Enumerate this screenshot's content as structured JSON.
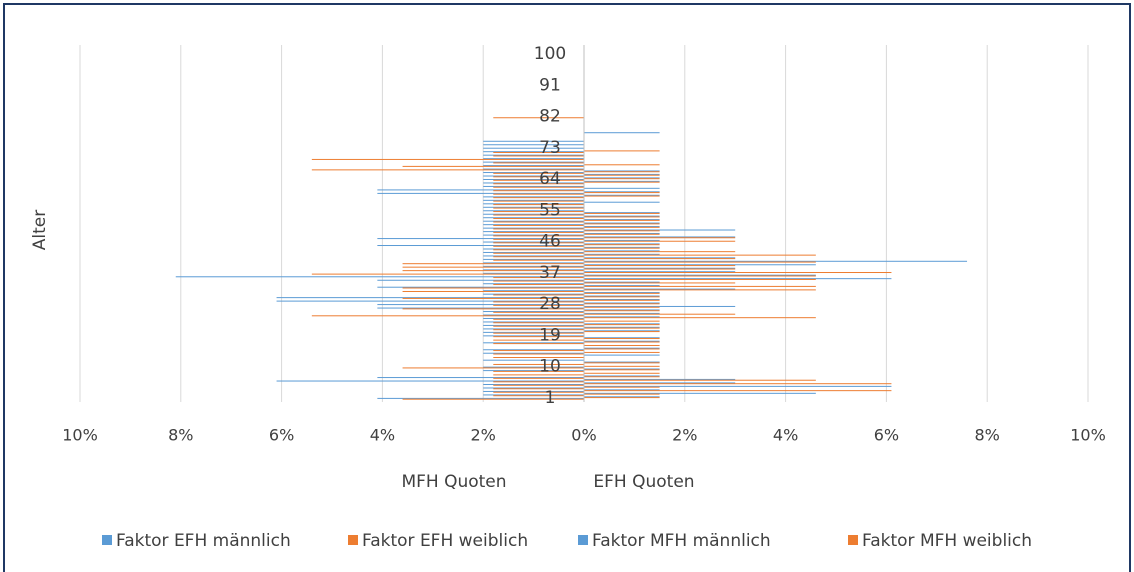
{
  "chart_data": {
    "type": "bar",
    "orientation": "horizontal",
    "categories": [
      1,
      null,
      null,
      null,
      null,
      null,
      null,
      null,
      null,
      10,
      null,
      null,
      null,
      null,
      null,
      null,
      null,
      null,
      19,
      null,
      null,
      null,
      null,
      null,
      null,
      null,
      null,
      28,
      null,
      null,
      null,
      null,
      null,
      null,
      null,
      null,
      37,
      null,
      null,
      null,
      null,
      null,
      null,
      null,
      null,
      46,
      null,
      null,
      null,
      null,
      null,
      null,
      null,
      null,
      55,
      null,
      null,
      null,
      null,
      null,
      null,
      null,
      null,
      64,
      null,
      null,
      null,
      null,
      null,
      null,
      null,
      null,
      73,
      null,
      null,
      null,
      null,
      null,
      null,
      null,
      null,
      82,
      null,
      null,
      null,
      null,
      null,
      null,
      null,
      null,
      91,
      null,
      null,
      null,
      null,
      null,
      null,
      null,
      null,
      100
    ],
    "series": [
      {
        "name": "Faktor EFH männlich",
        "color": "#5b9bd5",
        "values": [
          1.5,
          4.6,
          1.5,
          6.1,
          3.0,
          3.0,
          1.5,
          0,
          1.5,
          0,
          1.5,
          0,
          1.5,
          0,
          1.5,
          0,
          1.5,
          1.5,
          0,
          1.5,
          1.5,
          1.5,
          0,
          1.5,
          1.5,
          1.5,
          3.0,
          1.5,
          1.5,
          1.5,
          1.5,
          3.0,
          1.5,
          1.5,
          6.1,
          4.6,
          3.0,
          3.0,
          4.6,
          7.6,
          3.0,
          1.5,
          1.5,
          1.5,
          1.5,
          1.5,
          3.0,
          1.5,
          3.0,
          1.5,
          1.5,
          1.5,
          1.5,
          1.5,
          0,
          0,
          1.5,
          0,
          1.5,
          1.5,
          1.5,
          0,
          1.5,
          1.5,
          1.5,
          1.5,
          0,
          0,
          0,
          0,
          0,
          0,
          0,
          0,
          0,
          0,
          1.5,
          0,
          0,
          0,
          0,
          0,
          0,
          0,
          0,
          0,
          0,
          0,
          0,
          0,
          0,
          0,
          0,
          0,
          0,
          0,
          0,
          0,
          0,
          0
        ]
      },
      {
        "name": "Faktor EFH weiblich",
        "color": "#ed7d31",
        "values": [
          1.5,
          1.5,
          6.1,
          1.5,
          6.1,
          4.6,
          1.5,
          1.5,
          1.5,
          1.5,
          1.5,
          0,
          0,
          1.5,
          1.5,
          1.5,
          1.5,
          1.5,
          0,
          1.5,
          1.5,
          1.5,
          1.5,
          4.6,
          3.0,
          1.5,
          1.5,
          1.5,
          1.5,
          1.5,
          1.5,
          4.6,
          4.6,
          3.0,
          4.6,
          4.6,
          6.1,
          3.0,
          3.0,
          4.6,
          3.0,
          4.6,
          3.0,
          1.5,
          1.5,
          3.0,
          3.0,
          1.5,
          1.5,
          1.5,
          1.5,
          1.5,
          1.5,
          1.5,
          0,
          0,
          0,
          0,
          1.5,
          1.5,
          0,
          0,
          1.5,
          1.5,
          1.5,
          1.5,
          0,
          1.5,
          0,
          0,
          0,
          1.5,
          0,
          0,
          0,
          0,
          0,
          0,
          0,
          0,
          0,
          0,
          0,
          0,
          0,
          0,
          0,
          0,
          0,
          0,
          0,
          0,
          0,
          0,
          0,
          0,
          0,
          0,
          0,
          0
        ]
      },
      {
        "name": "Faktor MFH männlich",
        "color": "#5b9bd5",
        "values": [
          -4.1,
          -2.0,
          -2.0,
          -2.0,
          -2.0,
          -6.1,
          -4.1,
          0,
          -2.0,
          -2.0,
          0,
          -2.0,
          0,
          -2.0,
          -2.0,
          0,
          -2.0,
          0,
          -2.0,
          -2.0,
          -2.0,
          -2.0,
          -2.0,
          -2.0,
          -2.0,
          -2.0,
          -4.1,
          -4.1,
          -6.1,
          -6.1,
          -2.0,
          -2.0,
          -4.1,
          -2.0,
          -4.1,
          -8.1,
          -2.0,
          -2.0,
          -2.0,
          -2.0,
          -2.0,
          -2.0,
          -2.0,
          -2.0,
          -4.1,
          -2.0,
          -4.1,
          -2.0,
          -2.0,
          -2.0,
          -2.0,
          -2.0,
          -2.0,
          -2.0,
          -2.0,
          -2.0,
          -2.0,
          -2.0,
          -2.0,
          -4.1,
          -4.1,
          -2.0,
          -2.0,
          -2.0,
          -2.0,
          -2.0,
          -2.0,
          -2.0,
          -2.0,
          -2.0,
          -2.0,
          -2.0,
          -2.0,
          -2.0,
          -2.0,
          0,
          0,
          0,
          0,
          0,
          0,
          0,
          0,
          0,
          0,
          0,
          0,
          0,
          0,
          0,
          0,
          0,
          0,
          0,
          0,
          0,
          0,
          0,
          0,
          0
        ]
      },
      {
        "name": "Faktor MFH weiblich",
        "color": "#ed7d31",
        "values": [
          -3.6,
          -1.8,
          -1.8,
          -1.8,
          -1.8,
          -1.8,
          -1.8,
          -1.8,
          -1.8,
          -3.6,
          -1.8,
          0,
          -1.8,
          -1.8,
          -1.8,
          0,
          -1.8,
          -1.8,
          -1.8,
          -1.8,
          -1.8,
          -1.8,
          -1.8,
          -1.8,
          -5.4,
          -1.8,
          -3.6,
          -1.8,
          -1.8,
          -3.6,
          -1.8,
          -3.6,
          -3.6,
          -1.8,
          -1.8,
          -1.8,
          -5.4,
          -3.6,
          -3.6,
          -3.6,
          -1.8,
          -1.8,
          -1.8,
          -1.8,
          -1.8,
          -1.8,
          -1.8,
          -1.8,
          -1.8,
          -1.8,
          -1.8,
          -1.8,
          -1.8,
          -1.8,
          -1.8,
          -1.8,
          -1.8,
          -1.8,
          -1.8,
          -1.8,
          -1.8,
          -1.8,
          -1.8,
          -1.8,
          -1.8,
          -1.8,
          -5.4,
          -3.6,
          -1.8,
          -5.4,
          -1.8,
          -1.8,
          0,
          0,
          0,
          0,
          0,
          0,
          0,
          0,
          0,
          -1.8,
          0,
          0,
          0,
          0,
          0,
          0,
          0,
          0,
          0,
          0,
          0,
          0,
          0,
          0,
          0,
          0,
          0,
          0
        ]
      }
    ],
    "xlim": [
      -10,
      10
    ],
    "xticks": [
      {
        "value": -10,
        "label": "10%"
      },
      {
        "value": -8,
        "label": "8%"
      },
      {
        "value": -6,
        "label": "6%"
      },
      {
        "value": -4,
        "label": "4%"
      },
      {
        "value": -2,
        "label": "2%"
      },
      {
        "value": 0,
        "label": "0%"
      },
      {
        "value": 2,
        "label": "2%"
      },
      {
        "value": 4,
        "label": "4%"
      },
      {
        "value": 6,
        "label": "6%"
      },
      {
        "value": 8,
        "label": "8%"
      },
      {
        "value": 10,
        "label": "10%"
      }
    ],
    "ylabel": "Alter",
    "xlabel_left": "MFH Quoten",
    "xlabel_right": "EFH Quoten",
    "grid": true,
    "legend": "bottom"
  }
}
